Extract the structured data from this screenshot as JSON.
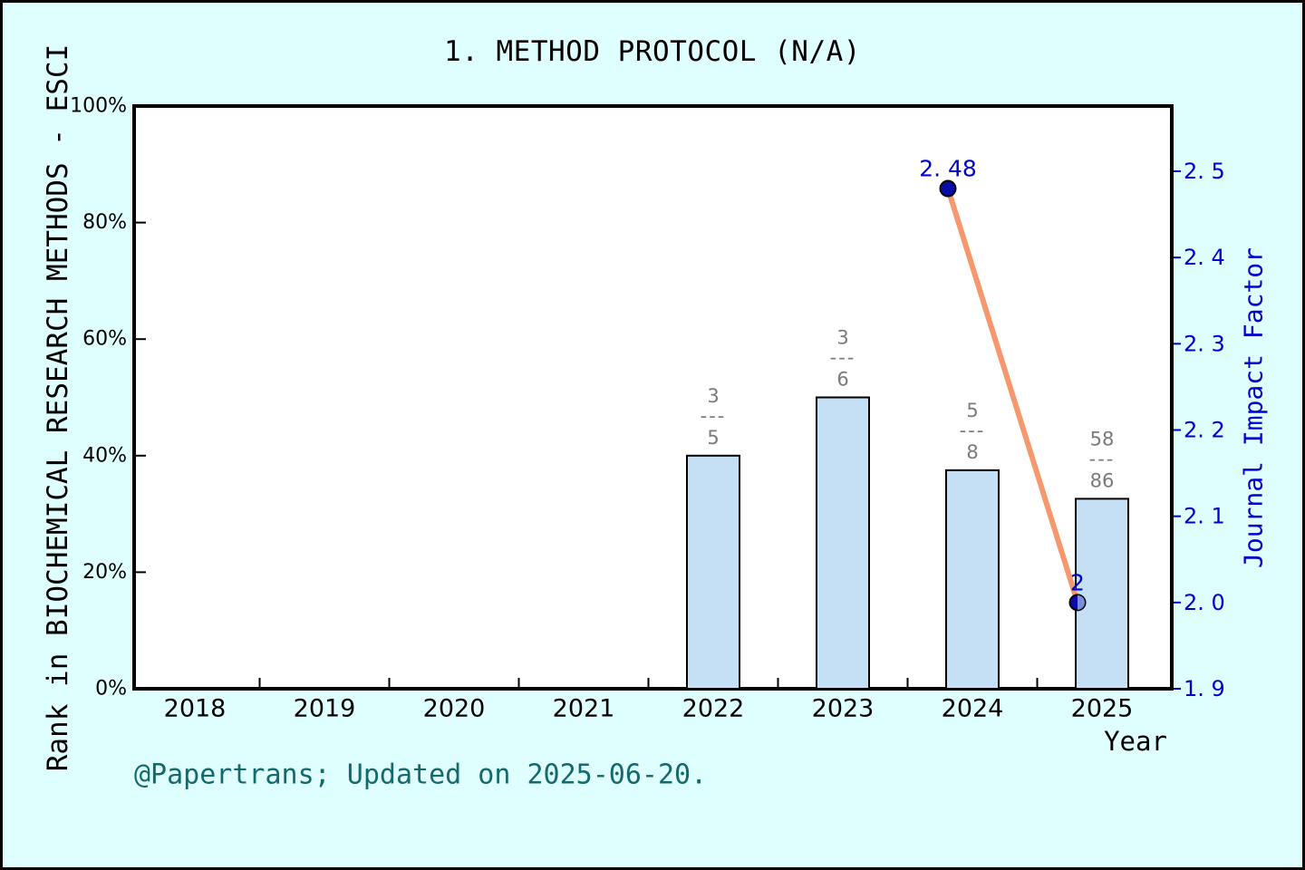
{
  "window": {
    "background": "#DFFFFF",
    "border_color": "#000000"
  },
  "chart_data": {
    "type": "bar+line",
    "title": "1. METHOD PROTOCOL (N/A)",
    "xlabel": "Year",
    "x_ticks": [
      "2018",
      "2019",
      "2020",
      "2021",
      "2022",
      "2023",
      "2024",
      "2025"
    ],
    "x_tick_values": [
      2018,
      2019,
      2020,
      2021,
      2022,
      2023,
      2024,
      2025
    ],
    "grid": false,
    "plot_background": "#FFFFFF",
    "left_axis": {
      "label": "Rank in BIOCHEMICAL RESEARCH METHODS - ESCI",
      "tick_labels": [
        "0%",
        "20%",
        "40%",
        "60%",
        "80%",
        "100%"
      ],
      "tick_values": [
        0,
        20,
        40,
        60,
        80,
        100
      ],
      "range": [
        0,
        100
      ],
      "color": "#000000"
    },
    "right_axis": {
      "label": "Journal Impact Factor",
      "tick_labels": [
        "1. 9",
        "2. 0",
        "2. 1",
        "2. 2",
        "2. 3",
        "2. 4",
        "2. 5"
      ],
      "tick_values": [
        1.9,
        2.0,
        2.1,
        2.2,
        2.3,
        2.4,
        2.5
      ],
      "range_bottom": 1.9,
      "color": "#0000CD"
    },
    "bars": {
      "series_name": "Rank percentile",
      "fill": "#C5DFF5",
      "edge": "#000000",
      "fraction_color": "#7A7A7A",
      "fraction_divider": "---",
      "points": [
        {
          "year": 2022,
          "rank": "3",
          "total": "5",
          "percent": 40.0
        },
        {
          "year": 2023,
          "rank": "3",
          "total": "6",
          "percent": 50.0
        },
        {
          "year": 2024,
          "rank": "5",
          "total": "8",
          "percent": 37.5
        },
        {
          "year": 2025,
          "rank": "58",
          "total": "86",
          "percent": 32.6
        }
      ]
    },
    "line": {
      "series_name": "Journal Impact Factor",
      "color": "#F6976D",
      "marker_color": "#0B0BAA",
      "marker_edge": "#000000",
      "marker_overlay_color": "#7B8FD8",
      "label_color": "#0000CD",
      "points": [
        {
          "year": 2024,
          "value": 2.48,
          "label": "2. 48"
        },
        {
          "year": 2025,
          "value": 2.0,
          "label": "2"
        }
      ]
    }
  },
  "footer": {
    "credit": "@Papertrans; Updated on 2025-06-20.",
    "color": "#14696B"
  }
}
